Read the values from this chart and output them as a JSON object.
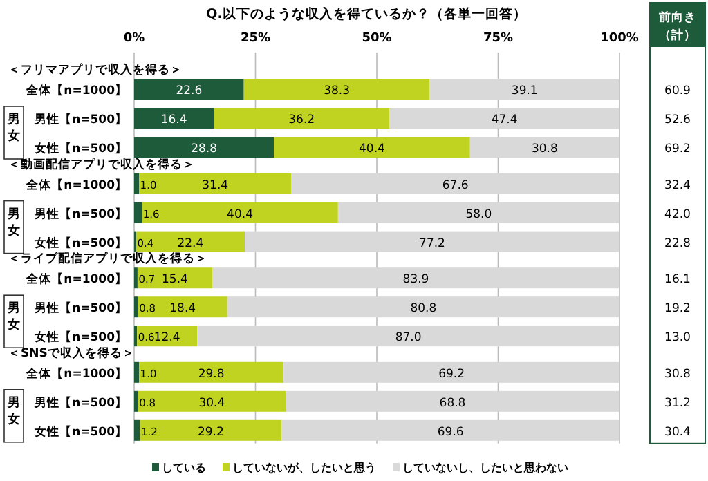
{
  "chart_data": {
    "type": "bar",
    "orientation": "horizontal",
    "stacked": true,
    "title": "Q.以下のような収入を得ているか？（各単一回答）",
    "categories": [
      "全体【n=1000】",
      "男性【n=500】",
      "女性【n=500】",
      "全体【n=1000】",
      "男性【n=500】",
      "女性【n=500】",
      "全体【n=1000】",
      "男性【n=500】",
      "女性【n=500】",
      "全体【n=1000】",
      "男性【n=500】",
      "女性【n=500】"
    ],
    "series": [
      {
        "name": "している",
        "color": "#1e5b3b",
        "values": [
          22.6,
          16.4,
          28.8,
          1.0,
          1.6,
          0.4,
          0.7,
          0.8,
          0.6,
          1.0,
          0.8,
          1.2
        ],
        "value_labels": [
          "22.6",
          "16.4",
          "28.8",
          "1.0",
          "1.6",
          "0.4",
          "0.7",
          "0.8",
          "0.6",
          "1.0",
          "0.8",
          "1.2"
        ]
      },
      {
        "name": "していないが、したいと思う",
        "color": "#bfd320",
        "values": [
          38.3,
          36.2,
          40.4,
          31.4,
          40.4,
          22.4,
          15.4,
          18.4,
          12.4,
          29.8,
          30.4,
          29.2
        ],
        "value_labels": [
          "38.3",
          "36.2",
          "40.4",
          "31.4",
          "40.4",
          "22.4",
          "15.4",
          "18.4",
          "12.4",
          "29.8",
          "30.4",
          "29.2"
        ]
      },
      {
        "name": "していないし、したいと思わない",
        "color": "#d9d9d9",
        "values": [
          39.1,
          47.4,
          30.8,
          67.6,
          58.0,
          77.2,
          83.9,
          80.8,
          87.0,
          69.2,
          68.8,
          69.6
        ],
        "value_labels": [
          "39.1",
          "47.4",
          "30.8",
          "67.6",
          "58.0",
          "77.2",
          "83.9",
          "80.8",
          "87.0",
          "69.2",
          "68.8",
          "69.6"
        ]
      }
    ],
    "xlim": [
      0,
      100
    ],
    "xticks": [
      {
        "value": 0,
        "label": "0%"
      },
      {
        "value": 25,
        "label": "25%"
      },
      {
        "value": 50,
        "label": "50%"
      },
      {
        "value": 75,
        "label": "75%"
      },
      {
        "value": 100,
        "label": "100%"
      }
    ],
    "grid": "x",
    "legend": "bottom",
    "annotations": [
      "＜フリマアプリで収入を得る＞",
      "＜動画配信アプリで収入を得る＞",
      "＜ライブ配信アプリで収入を得る＞",
      "＜SNSで収入を得る＞",
      "男女",
      "男女",
      "男女",
      "男女",
      "前向き（計）",
      "60.9",
      "52.6",
      "69.2",
      "32.4",
      "42.0",
      "22.8",
      "16.1",
      "19.2",
      "13.0",
      "30.8",
      "31.2",
      "30.4"
    ]
  }
}
